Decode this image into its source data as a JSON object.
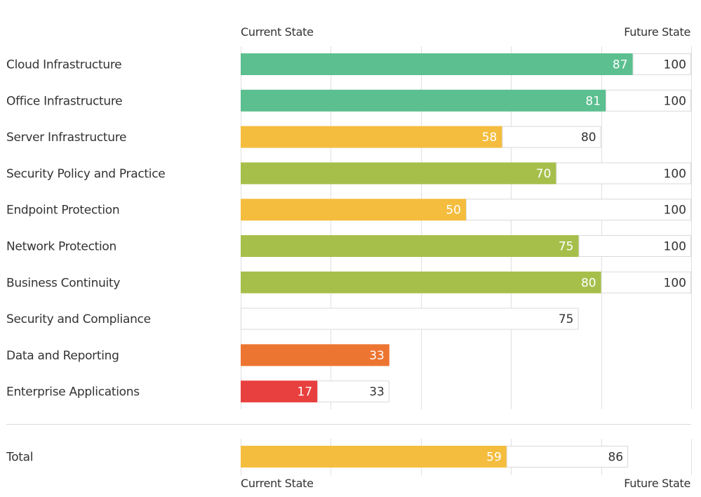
{
  "header": {
    "current_label": "Current State",
    "future_label": "Future State"
  },
  "footer": {
    "current_label": "Current State",
    "future_label": "Future State"
  },
  "chart_data": {
    "type": "bar",
    "orientation": "horizontal",
    "xlim": [
      0,
      100
    ],
    "grid": true,
    "colors": {
      "green": "#5bbf8f",
      "lime": "#a6bf4b",
      "yellow": "#f4bd3e",
      "orange": "#ed7532",
      "red": "#e8403f",
      "future_border": "#d9d9d9",
      "grid": "#e0e0e0"
    },
    "categories": [
      "Cloud Infrastructure",
      "Office Infrastructure",
      "Server Infrastructure",
      "Security Policy and Practice",
      "Endpoint Protection",
      "Network Protection",
      "Business Continuity",
      "Security and Compliance",
      "Data and Reporting",
      "Enterprise Applications"
    ],
    "series": [
      {
        "name": "Current State",
        "values": [
          87,
          81,
          58,
          70,
          50,
          75,
          80,
          null,
          33,
          17
        ],
        "bar_colors": [
          "green",
          "green",
          "yellow",
          "lime",
          "yellow",
          "lime",
          "lime",
          null,
          "orange",
          "red"
        ]
      },
      {
        "name": "Future State",
        "values": [
          100,
          100,
          80,
          100,
          100,
          100,
          100,
          75,
          null,
          33
        ]
      }
    ],
    "total": {
      "label": "Total",
      "current": 59,
      "future": 86,
      "color": "yellow"
    }
  }
}
